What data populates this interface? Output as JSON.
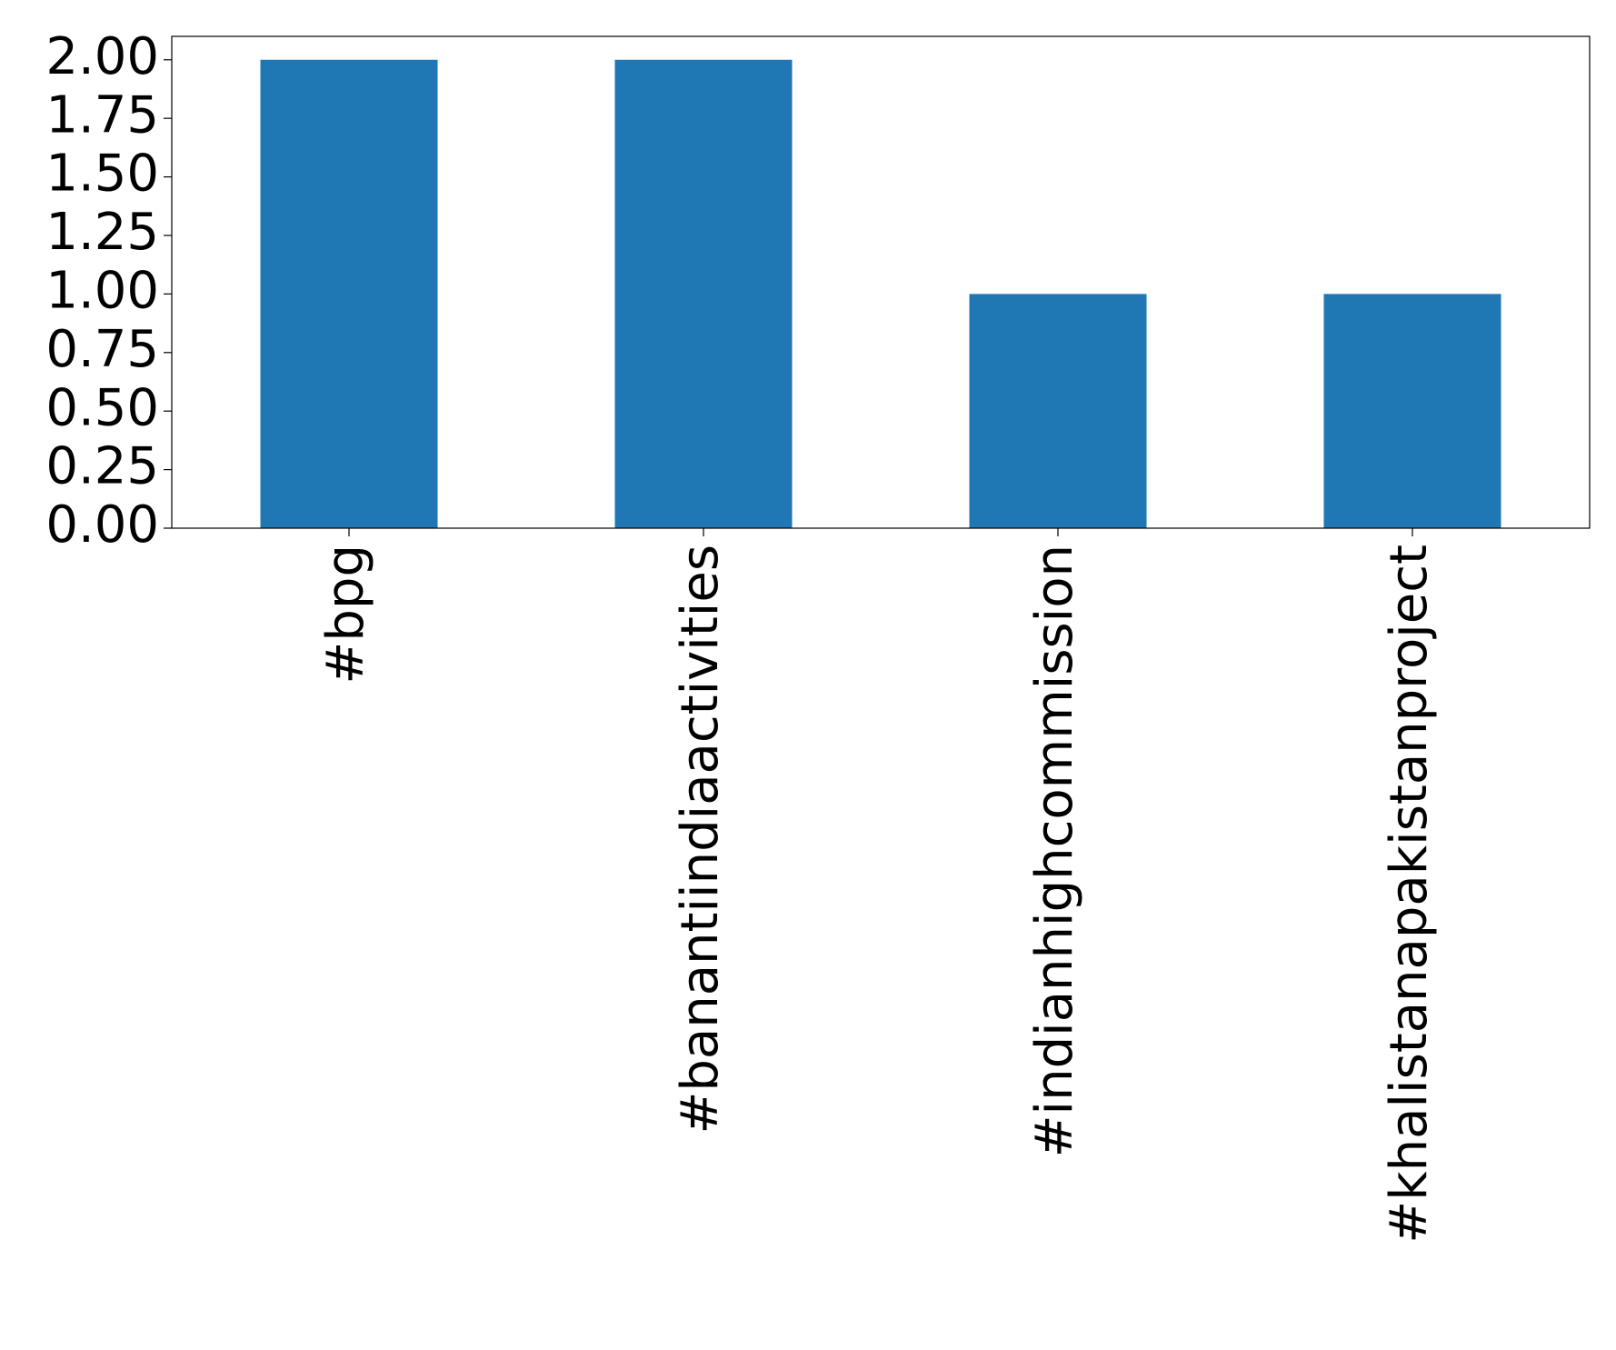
{
  "chart_data": {
    "type": "bar",
    "categories": [
      "#bpg",
      "#banantiindiaactivities",
      "#indianhighcommission",
      "#khalistanapakistanproject"
    ],
    "values": [
      2,
      2,
      1,
      1
    ],
    "color": "#1f77b4",
    "ylim": [
      0,
      2.1
    ],
    "yticks": [
      {
        "value": 0,
        "label": "0.00"
      },
      {
        "value": 0.25,
        "label": "0.25"
      },
      {
        "value": 0.5,
        "label": "0.50"
      },
      {
        "value": 0.75,
        "label": "0.75"
      },
      {
        "value": 1,
        "label": "1.00"
      },
      {
        "value": 1.25,
        "label": "1.25"
      },
      {
        "value": 1.5,
        "label": "1.50"
      },
      {
        "value": 1.75,
        "label": "1.75"
      },
      {
        "value": 2,
        "label": "2.00"
      }
    ],
    "grid": false
  }
}
